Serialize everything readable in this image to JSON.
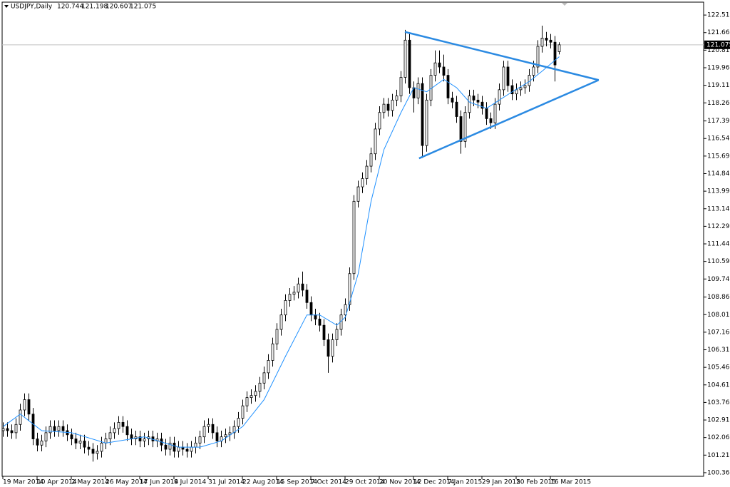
{
  "chart_data": {
    "type": "candlestick",
    "title": "USDJPY,Daily",
    "categories": [
      "19 Mar 2014",
      null,
      null,
      null,
      null,
      null,
      null,
      null,
      "10 Apr 2014",
      null,
      null,
      null,
      null,
      null,
      null,
      null,
      "2 May 2014",
      null,
      null,
      null,
      null,
      null,
      null,
      null,
      "26 May 2014",
      null,
      null,
      null,
      null,
      null,
      null,
      null,
      "17 Jun 2014",
      null,
      null,
      null,
      null,
      null,
      null,
      null,
      "9 Jul 2014",
      null,
      null,
      null,
      null,
      null,
      null,
      null,
      "31 Jul 2014",
      null,
      null,
      null,
      null,
      null,
      null,
      null,
      "22 Aug 2014",
      null,
      null,
      null,
      null,
      null,
      null,
      null,
      "15 Sep 2014",
      null,
      null,
      null,
      null,
      null,
      null,
      null,
      "7 Oct 2014",
      null,
      null,
      null,
      null,
      null,
      null,
      null,
      "29 Oct 2014",
      null,
      null,
      null,
      null,
      null,
      null,
      null,
      "20 Nov 2014",
      null,
      null,
      null,
      null,
      null,
      null,
      null,
      "12 Dec 2014",
      null,
      null,
      null,
      null,
      null,
      null,
      null,
      "7 Jan 2015",
      null,
      null,
      null,
      null,
      null,
      null,
      null,
      "29 Jan 2015",
      null,
      null,
      null,
      null,
      null,
      null,
      null,
      "20 Feb 2015",
      null,
      null,
      null,
      null,
      null,
      null,
      null,
      "16 Mar 2015",
      null,
      null
    ],
    "open": [
      102.4,
      102.5,
      102.4,
      102.3,
      102.7,
      103.4,
      103.9,
      103.2,
      102.0,
      101.7,
      101.9,
      102.3,
      102.6,
      102.4,
      102.6,
      102.4,
      102.2,
      102.0,
      101.8,
      101.9,
      101.6,
      101.5,
      101.3,
      101.4,
      101.8,
      102.0,
      102.3,
      102.5,
      102.8,
      102.6,
      102.2,
      102.0,
      102.1,
      101.9,
      102.0,
      102.1,
      101.9,
      102.0,
      101.7,
      101.5,
      101.8,
      101.4,
      101.6,
      101.5,
      101.4,
      101.6,
      101.8,
      102.1,
      102.6,
      102.7,
      102.3,
      101.9,
      102.1,
      102.2,
      102.3,
      102.6,
      103.0,
      103.6,
      104.0,
      104.1,
      104.3,
      104.7,
      105.2,
      105.8,
      106.6,
      107.3,
      108.0,
      108.7,
      109.0,
      109.1,
      109.5,
      109.2,
      108.6,
      108.0,
      107.8,
      107.5,
      106.8,
      106.0,
      106.8,
      107.3,
      108.0,
      108.5,
      110.0,
      113.5,
      114.2,
      114.6,
      115.2,
      115.8,
      117.0,
      117.8,
      118.2,
      117.9,
      118.4,
      118.6,
      119.5,
      121.3,
      119.0,
      118.5,
      119.2,
      116.2,
      118.4,
      119.6,
      120.2,
      120.0,
      119.6,
      118.5,
      118.3,
      117.6,
      116.4,
      117.8,
      118.6,
      118.4,
      118.3,
      118.0,
      117.5,
      117.3,
      118.2,
      118.9,
      120.0,
      119.1,
      118.7,
      118.9,
      119.0,
      119.1,
      119.6,
      120.0,
      121.0,
      121.4,
      121.3,
      121.2,
      120.744
    ],
    "high": [
      102.8,
      102.8,
      102.7,
      103.0,
      103.7,
      104.2,
      104.2,
      103.5,
      102.3,
      102.2,
      102.6,
      102.9,
      102.9,
      102.9,
      102.9,
      102.7,
      102.5,
      102.3,
      102.2,
      102.2,
      101.9,
      101.8,
      101.7,
      102.1,
      102.3,
      102.6,
      102.8,
      103.1,
      103.1,
      102.9,
      102.5,
      102.4,
      102.4,
      102.3,
      102.4,
      102.4,
      102.3,
      102.3,
      102.0,
      102.1,
      102.1,
      101.9,
      101.9,
      101.8,
      101.9,
      102.1,
      102.4,
      102.9,
      103.0,
      103.0,
      102.6,
      102.4,
      102.5,
      102.6,
      102.9,
      103.3,
      103.9,
      104.3,
      104.4,
      104.6,
      105.0,
      105.5,
      106.1,
      106.9,
      107.6,
      108.3,
      109.0,
      109.3,
      109.4,
      109.8,
      110.1,
      109.5,
      108.9,
      108.3,
      108.1,
      107.8,
      107.1,
      107.1,
      107.6,
      108.3,
      108.8,
      110.3,
      113.8,
      114.5,
      114.9,
      115.5,
      116.1,
      117.3,
      118.1,
      118.5,
      118.5,
      118.7,
      118.9,
      119.8,
      121.8,
      121.6,
      119.3,
      119.5,
      119.5,
      118.7,
      119.9,
      120.8,
      120.8,
      120.6,
      119.9,
      118.8,
      118.6,
      117.9,
      118.1,
      118.9,
      118.9,
      118.7,
      118.6,
      118.3,
      117.8,
      118.5,
      119.2,
      120.3,
      120.3,
      119.4,
      119.2,
      119.3,
      119.4,
      119.9,
      120.3,
      121.3,
      122.0,
      121.7,
      121.6,
      121.5,
      121.198
    ],
    "low": [
      102.1,
      102.1,
      102.0,
      102.0,
      102.4,
      103.1,
      102.9,
      101.7,
      101.4,
      101.4,
      101.6,
      102.0,
      102.1,
      102.1,
      102.1,
      101.9,
      101.7,
      101.5,
      101.5,
      101.3,
      101.2,
      100.9,
      101.0,
      101.1,
      101.5,
      101.7,
      102.0,
      102.2,
      102.3,
      101.9,
      101.7,
      101.7,
      101.6,
      101.6,
      101.7,
      101.6,
      101.6,
      101.4,
      101.2,
      101.2,
      101.1,
      101.1,
      101.2,
      101.1,
      101.1,
      101.3,
      101.5,
      101.8,
      102.3,
      102.0,
      101.6,
      101.6,
      101.8,
      101.9,
      102.0,
      102.3,
      102.7,
      103.3,
      103.7,
      103.8,
      104.0,
      104.4,
      104.9,
      105.5,
      106.3,
      107.0,
      107.7,
      108.4,
      108.7,
      108.8,
      108.9,
      108.3,
      107.7,
      107.5,
      107.2,
      106.5,
      105.2,
      105.7,
      106.5,
      107.0,
      107.7,
      108.2,
      109.7,
      113.2,
      113.9,
      114.3,
      114.9,
      115.5,
      116.7,
      117.5,
      117.6,
      117.6,
      118.1,
      118.3,
      119.2,
      118.7,
      117.8,
      118.2,
      115.6,
      115.9,
      118.1,
      119.3,
      119.7,
      119.3,
      118.2,
      118.0,
      117.3,
      115.8,
      116.1,
      117.5,
      118.1,
      118.0,
      117.7,
      117.2,
      117.0,
      117.0,
      117.9,
      118.6,
      118.8,
      118.4,
      118.4,
      118.6,
      118.7,
      118.8,
      119.3,
      119.7,
      120.7,
      121.0,
      120.9,
      119.3,
      120.607
    ],
    "close": [
      102.5,
      102.4,
      102.3,
      102.7,
      103.4,
      103.9,
      103.2,
      102.0,
      101.7,
      101.9,
      102.3,
      102.6,
      102.4,
      102.6,
      102.4,
      102.2,
      102.0,
      101.8,
      101.9,
      101.6,
      101.5,
      101.3,
      101.4,
      101.8,
      102.0,
      102.3,
      102.5,
      102.8,
      102.6,
      102.2,
      102.0,
      102.1,
      101.9,
      102.0,
      102.1,
      101.9,
      102.0,
      101.7,
      101.5,
      101.8,
      101.4,
      101.6,
      101.5,
      101.4,
      101.6,
      101.8,
      102.1,
      102.6,
      102.7,
      102.3,
      101.9,
      102.1,
      102.2,
      102.3,
      102.6,
      103.0,
      103.6,
      104.0,
      104.1,
      104.3,
      104.7,
      105.2,
      105.8,
      106.6,
      107.3,
      108.0,
      108.7,
      109.0,
      109.1,
      109.5,
      109.2,
      108.6,
      108.0,
      107.8,
      107.5,
      106.8,
      106.0,
      106.8,
      107.3,
      108.0,
      108.5,
      110.0,
      113.5,
      114.2,
      114.6,
      115.2,
      115.8,
      117.0,
      117.8,
      118.2,
      117.9,
      118.4,
      118.6,
      119.5,
      121.3,
      119.0,
      118.5,
      119.2,
      116.2,
      118.4,
      119.6,
      120.2,
      120.0,
      119.6,
      118.5,
      118.3,
      117.6,
      116.4,
      117.8,
      118.6,
      118.4,
      118.3,
      118.0,
      117.5,
      117.3,
      118.2,
      118.9,
      120.0,
      119.1,
      118.7,
      118.9,
      119.0,
      119.1,
      119.6,
      120.0,
      121.0,
      121.4,
      121.3,
      121.2,
      120.1,
      121.075
    ],
    "up_color": "#ffffff",
    "down_color": "#000000",
    "ylim": [
      100.19,
      123.14
    ],
    "yticks": [
      122.515,
      121.665,
      120.815,
      119.965,
      119.115,
      118.265,
      {
        "value": 117.39,
        "label": "117.390"
      },
      {
        "value": 116.54,
        "label": "116.540"
      },
      {
        "value": 115.69,
        "label": "115.690"
      },
      {
        "value": 114.84,
        "label": "114.840"
      },
      {
        "value": 113.99,
        "label": "113.990"
      },
      {
        "value": 113.14,
        "label": "113.140"
      },
      {
        "value": 112.29,
        "label": "112.290"
      },
      {
        "value": 111.44,
        "label": "111.440"
      },
      {
        "value": 110.59,
        "label": "110.590"
      },
      {
        "value": 109.74,
        "label": "109.740"
      },
      108.865,
      108.015,
      107.165,
      106.315,
      105.465,
      104.615,
      103.765,
      102.915,
      102.065,
      101.215,
      100.365
    ],
    "ma": {
      "color": "#1e90ff",
      "x": [
        0,
        4,
        9,
        16,
        24,
        33,
        41,
        46,
        51,
        56,
        61,
        66,
        71,
        74,
        78,
        80,
        83,
        86,
        89,
        93,
        96,
        99,
        103,
        106,
        109,
        113,
        116,
        119,
        123,
        126,
        130
      ],
      "values": [
        102.6,
        103.2,
        102.4,
        102.3,
        101.8,
        102.1,
        101.6,
        101.6,
        101.9,
        102.6,
        103.9,
        106.0,
        108.0,
        108.0,
        107.5,
        107.9,
        110.0,
        113.5,
        116.0,
        117.8,
        119.0,
        118.8,
        119.4,
        119.0,
        118.3,
        118.0,
        118.4,
        118.8,
        119.3,
        119.8,
        120.5
      ]
    },
    "trendlines": [
      {
        "color": "#2b8ae2",
        "x": [
          94,
          139.3
        ],
        "y": [
          121.7,
          119.37
        ]
      },
      {
        "color": "#2b8ae2",
        "x": [
          97.3,
          139.3
        ],
        "y": [
          115.58,
          119.37
        ]
      }
    ],
    "last_price": 121.075
  }
}
